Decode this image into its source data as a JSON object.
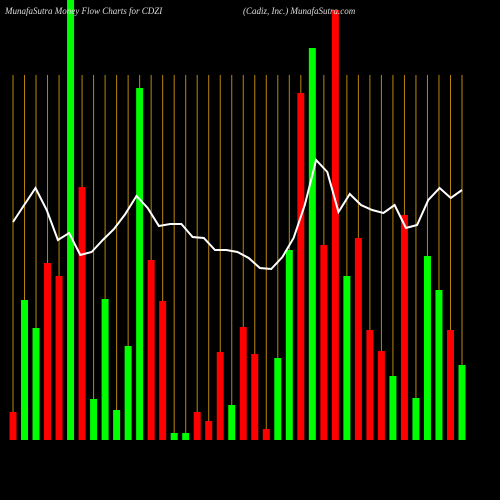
{
  "chart_data": {
    "type": "bar",
    "title": "MunafaSutra Money Flow Charts for CDZI",
    "subtitle": "(Cadiz, Inc.) MunafaSutra.com",
    "ylim": [
      0,
      440
    ],
    "grid": true,
    "grid_color": "#b8860b",
    "values": [
      28,
      140,
      112,
      177,
      164,
      440,
      253,
      41,
      141,
      30,
      94,
      352,
      180,
      139,
      7,
      7,
      28,
      19,
      88,
      35,
      113,
      86,
      11,
      82,
      190,
      347,
      392,
      195,
      430,
      164,
      202,
      110,
      89,
      64,
      225,
      42,
      184,
      150,
      110,
      75
    ],
    "colors": [
      "#ff0000",
      "#00ff00",
      "#00ff00",
      "#ff0000",
      "#ff0000",
      "#00ff00",
      "#ff0000",
      "#00ff00",
      "#00ff00",
      "#00ff00",
      "#00ff00",
      "#00ff00",
      "#ff0000",
      "#ff0000",
      "#00ff00",
      "#00ff00",
      "#ff0000",
      "#ff0000",
      "#ff0000",
      "#00ff00",
      "#ff0000",
      "#ff0000",
      "#ff0000",
      "#00ff00",
      "#00ff00",
      "#ff0000",
      "#00ff00",
      "#ff0000",
      "#ff0000",
      "#00ff00",
      "#ff0000",
      "#ff0000",
      "#ff0000",
      "#00ff00",
      "#ff0000",
      "#00ff00",
      "#00ff00",
      "#00ff00",
      "#ff0000",
      "#00ff00"
    ],
    "line_color": "#ffffff",
    "line_values": [
      218,
      235,
      252,
      230,
      200,
      207,
      185,
      188,
      200,
      211,
      226,
      244,
      232,
      214,
      216,
      216,
      203,
      202,
      190,
      190,
      188,
      182,
      172,
      171,
      183,
      202,
      235,
      280,
      268,
      228,
      246,
      235,
      230,
      227,
      235,
      212,
      215,
      240,
      252,
      242,
      250
    ]
  }
}
